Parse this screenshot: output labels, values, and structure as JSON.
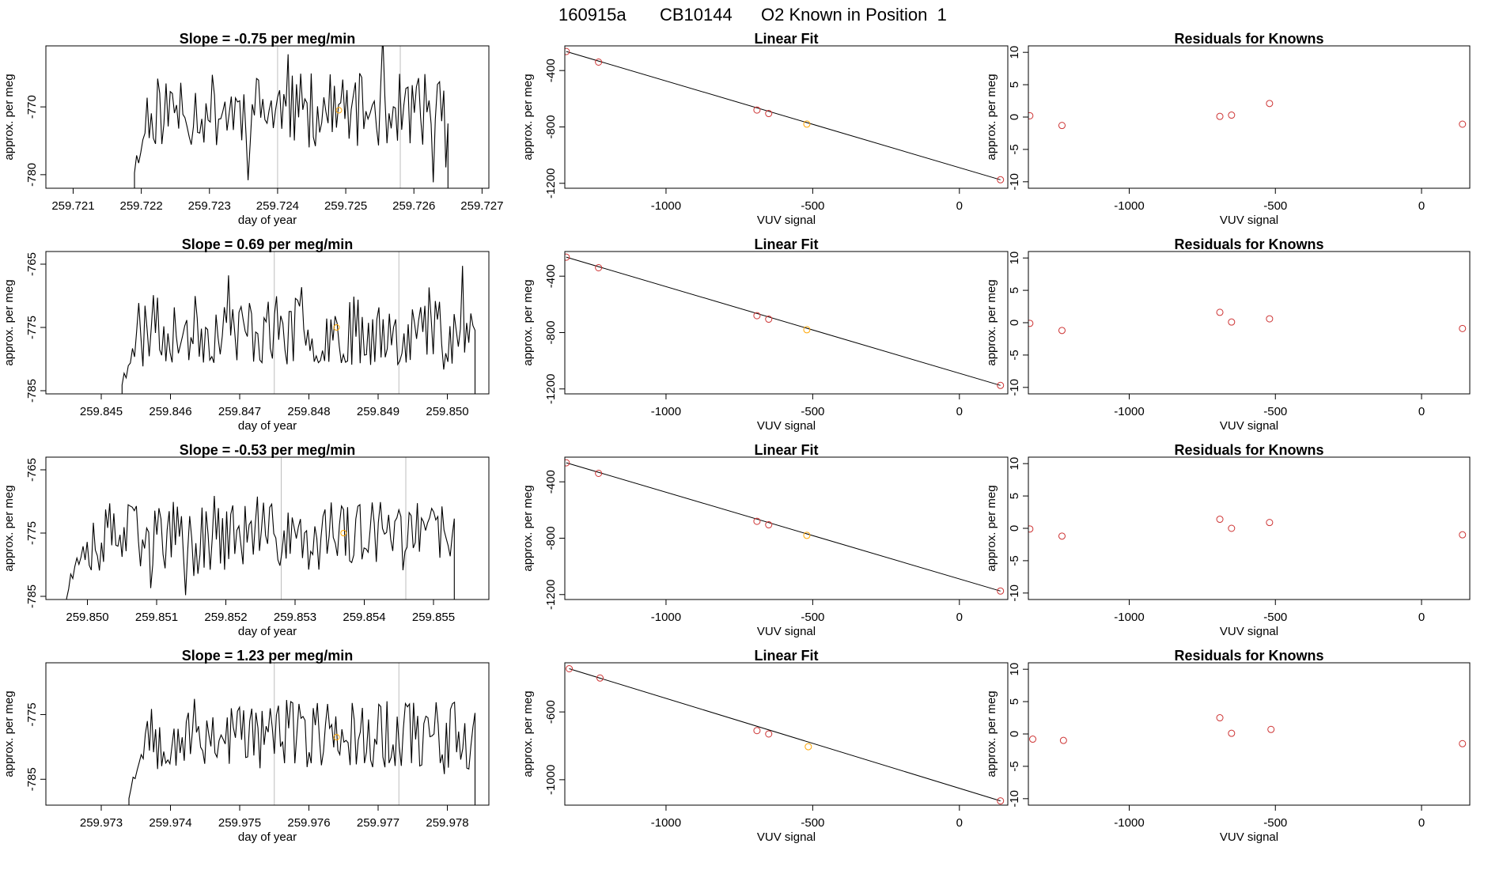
{
  "figure": {
    "run_id": "160915a",
    "tank_id": "CB10144",
    "title_rest": "O2 Known in Position  1"
  },
  "colors": {
    "trace": "#000000",
    "known_points": "#cd3333",
    "highlight_point": "#ffa500",
    "marker_lines": "#bebebe"
  },
  "chart_data": [
    {
      "type": "line",
      "row": 0,
      "panel": "time-series",
      "title": "Slope =  -0.75  per meg/min",
      "xlabel": "day of year",
      "ylabel": "approx. per meg",
      "xlim": [
        259.7206,
        259.7271
      ],
      "ylim": [
        -782,
        -761
      ],
      "xticks": [
        259.721,
        259.722,
        259.723,
        259.724,
        259.725,
        259.726,
        259.727
      ],
      "xtick_labels": [
        "259.721",
        "259.722",
        "259.723",
        "259.724",
        "259.725",
        "259.726",
        "259.727"
      ],
      "yticks": [
        -770,
        -780
      ],
      "ytick_labels": [
        "-770",
        "-780"
      ],
      "x_start": 259.7219,
      "x_end": 259.7265,
      "n_points": 150,
      "y_mean": -770.5,
      "y_amp": 5.5,
      "seed": 11,
      "marker_lines_x": [
        259.724,
        259.7258
      ],
      "highlight": {
        "x": 259.7249,
        "y": -770.5
      }
    },
    {
      "type": "scatter",
      "row": 0,
      "panel": "linear-fit",
      "title": "Linear Fit",
      "xlabel": "VUV signal",
      "ylabel": "approx. per meg",
      "xlim": [
        -1345,
        165
      ],
      "ylim": [
        -1235,
        -225
      ],
      "xticks": [
        -1000,
        -500,
        0
      ],
      "xtick_labels": [
        "-1000",
        "-500",
        "0"
      ],
      "yticks": [
        -400,
        -800,
        -1200
      ],
      "ytick_labels": [
        "-400",
        "-800",
        "-1200"
      ],
      "points": [
        {
          "x": -1340,
          "y": -265
        },
        {
          "x": -1230,
          "y": -340
        },
        {
          "x": -690,
          "y": -680
        },
        {
          "x": -650,
          "y": -705
        },
        {
          "x": -520,
          "y": -780
        },
        {
          "x": 140,
          "y": -1175
        }
      ],
      "fit_line": [
        {
          "x": -1340,
          "y": -265
        },
        {
          "x": 140,
          "y": -1175
        }
      ],
      "highlight_index": 4
    },
    {
      "type": "scatter",
      "row": 0,
      "panel": "residuals",
      "title": "Residuals for Knowns",
      "xlabel": "VUV signal",
      "ylabel": "approx. per meg",
      "xlim": [
        -1345,
        165
      ],
      "ylim": [
        -11,
        11
      ],
      "xticks": [
        -1000,
        -500,
        0
      ],
      "xtick_labels": [
        "-1000",
        "-500",
        "0"
      ],
      "yticks": [
        10,
        5,
        0,
        -5,
        -10
      ],
      "ytick_labels": [
        "10",
        "5",
        "0",
        "-5",
        "-10"
      ],
      "points": [
        {
          "x": -1340,
          "y": 0.2
        },
        {
          "x": -1230,
          "y": -1.3
        },
        {
          "x": -690,
          "y": 0.1
        },
        {
          "x": -650,
          "y": 0.3
        },
        {
          "x": -520,
          "y": 2.1
        },
        {
          "x": 140,
          "y": -1.1
        }
      ]
    },
    {
      "type": "line",
      "row": 1,
      "panel": "time-series",
      "title": "Slope =  0.69  per meg/min",
      "xlabel": "day of year",
      "ylabel": "approx. per meg",
      "xlim": [
        259.8442,
        259.8506
      ],
      "ylim": [
        -785.5,
        -763
      ],
      "xticks": [
        259.845,
        259.846,
        259.847,
        259.848,
        259.849,
        259.85
      ],
      "xtick_labels": [
        "259.845",
        "259.846",
        "259.847",
        "259.848",
        "259.849",
        "259.850"
      ],
      "yticks": [
        -765,
        -775,
        -785
      ],
      "ytick_labels": [
        "-765",
        "-775",
        "-785"
      ],
      "x_start": 259.8453,
      "x_end": 259.8504,
      "n_points": 170,
      "y_mean": -775.5,
      "y_amp": 5.5,
      "seed": 23,
      "marker_lines_x": [
        259.8475,
        259.8493
      ],
      "highlight": {
        "x": 259.8484,
        "y": -775
      }
    },
    {
      "type": "scatter",
      "row": 1,
      "panel": "linear-fit",
      "title": "Linear Fit",
      "xlabel": "VUV signal",
      "ylabel": "approx. per meg",
      "xlim": [
        -1345,
        165
      ],
      "ylim": [
        -1235,
        -225
      ],
      "xticks": [
        -1000,
        -500,
        0
      ],
      "xtick_labels": [
        "-1000",
        "-500",
        "0"
      ],
      "yticks": [
        -400,
        -800,
        -1200
      ],
      "ytick_labels": [
        "-400",
        "-800",
        "-1200"
      ],
      "points": [
        {
          "x": -1340,
          "y": -265
        },
        {
          "x": -1230,
          "y": -340
        },
        {
          "x": -690,
          "y": -680
        },
        {
          "x": -650,
          "y": -705
        },
        {
          "x": -520,
          "y": -780
        },
        {
          "x": 140,
          "y": -1175
        }
      ],
      "fit_line": [
        {
          "x": -1340,
          "y": -265
        },
        {
          "x": 140,
          "y": -1175
        }
      ],
      "highlight_index": 4
    },
    {
      "type": "scatter",
      "row": 1,
      "panel": "residuals",
      "title": "Residuals for Knowns",
      "xlabel": "VUV signal",
      "ylabel": "approx. per meg",
      "xlim": [
        -1345,
        165
      ],
      "ylim": [
        -11,
        11
      ],
      "xticks": [
        -1000,
        -500,
        0
      ],
      "xtick_labels": [
        "-1000",
        "-500",
        "0"
      ],
      "yticks": [
        10,
        5,
        0,
        -5,
        -10
      ],
      "ytick_labels": [
        "10",
        "5",
        "0",
        "-5",
        "-10"
      ],
      "points": [
        {
          "x": -1340,
          "y": -0.1
        },
        {
          "x": -1230,
          "y": -1.2
        },
        {
          "x": -690,
          "y": 1.6
        },
        {
          "x": -650,
          "y": 0.1
        },
        {
          "x": -520,
          "y": 0.6
        },
        {
          "x": 140,
          "y": -0.9
        }
      ]
    },
    {
      "type": "line",
      "row": 2,
      "panel": "time-series",
      "title": "Slope =  -0.53  per meg/min",
      "xlabel": "day of year",
      "ylabel": "approx. per meg",
      "xlim": [
        259.8494,
        259.8558
      ],
      "ylim": [
        -785.5,
        -763
      ],
      "xticks": [
        259.85,
        259.851,
        259.852,
        259.853,
        259.854,
        259.855
      ],
      "xtick_labels": [
        "259.850",
        "259.851",
        "259.852",
        "259.853",
        "259.854",
        "259.855"
      ],
      "yticks": [
        -765,
        -775,
        -785
      ],
      "ytick_labels": [
        "-765",
        "-775",
        "-785"
      ],
      "x_start": 259.8497,
      "x_end": 259.8553,
      "n_points": 190,
      "y_mean": -775.5,
      "y_amp": 5.5,
      "seed": 37,
      "marker_lines_x": [
        259.8528,
        259.8546
      ],
      "highlight": {
        "x": 259.8537,
        "y": -775
      }
    },
    {
      "type": "scatter",
      "row": 2,
      "panel": "linear-fit",
      "title": "Linear Fit",
      "xlabel": "VUV signal",
      "ylabel": "approx. per meg",
      "xlim": [
        -1345,
        165
      ],
      "ylim": [
        -1235,
        -225
      ],
      "xticks": [
        -1000,
        -500,
        0
      ],
      "xtick_labels": [
        "-1000",
        "-500",
        "0"
      ],
      "yticks": [
        -400,
        -800,
        -1200
      ],
      "ytick_labels": [
        "-400",
        "-800",
        "-1200"
      ],
      "points": [
        {
          "x": -1340,
          "y": -265
        },
        {
          "x": -1230,
          "y": -340
        },
        {
          "x": -690,
          "y": -680
        },
        {
          "x": -650,
          "y": -705
        },
        {
          "x": -520,
          "y": -780
        },
        {
          "x": 140,
          "y": -1175
        }
      ],
      "fit_line": [
        {
          "x": -1340,
          "y": -265
        },
        {
          "x": 140,
          "y": -1175
        }
      ],
      "highlight_index": 4
    },
    {
      "type": "scatter",
      "row": 2,
      "panel": "residuals",
      "title": "Residuals for Knowns",
      "xlabel": "VUV signal",
      "ylabel": "approx. per meg",
      "xlim": [
        -1345,
        165
      ],
      "ylim": [
        -11,
        11
      ],
      "xticks": [
        -1000,
        -500,
        0
      ],
      "xtick_labels": [
        "-1000",
        "-500",
        "0"
      ],
      "yticks": [
        10,
        5,
        0,
        -5,
        -10
      ],
      "ytick_labels": [
        "10",
        "5",
        "0",
        "-5",
        "-10"
      ],
      "points": [
        {
          "x": -1340,
          "y": -0.1
        },
        {
          "x": -1230,
          "y": -1.2
        },
        {
          "x": -690,
          "y": 1.4
        },
        {
          "x": -650,
          "y": 0.0
        },
        {
          "x": -520,
          "y": 0.9
        },
        {
          "x": 140,
          "y": -1.0
        }
      ]
    },
    {
      "type": "line",
      "row": 3,
      "panel": "time-series",
      "title": "Slope =  1.23  per meg/min",
      "xlabel": "day of year",
      "ylabel": "approx. per meg",
      "xlim": [
        259.9722,
        259.9786
      ],
      "ylim": [
        -789,
        -767
      ],
      "xticks": [
        259.973,
        259.974,
        259.975,
        259.976,
        259.977,
        259.978
      ],
      "xtick_labels": [
        "259.973",
        "259.974",
        "259.975",
        "259.976",
        "259.977",
        "259.978"
      ],
      "yticks": [
        -775,
        -785
      ],
      "ytick_labels": [
        "-775",
        "-785"
      ],
      "x_start": 259.9734,
      "x_end": 259.9784,
      "n_points": 170,
      "y_mean": -778,
      "y_amp": 5.5,
      "seed": 53,
      "marker_lines_x": [
        259.9755,
        259.9773
      ],
      "highlight": {
        "x": 259.9764,
        "y": -778.5
      }
    },
    {
      "type": "scatter",
      "row": 3,
      "panel": "linear-fit",
      "title": "Linear Fit",
      "xlabel": "VUV signal",
      "ylabel": "approx. per meg",
      "xlim": [
        -1345,
        165
      ],
      "ylim": [
        -1150,
        -310
      ],
      "xticks": [
        -1000,
        -500,
        0
      ],
      "xtick_labels": [
        "-1000",
        "-500",
        "0"
      ],
      "yticks": [
        -600,
        -1000
      ],
      "ytick_labels": [
        "-600",
        "-1000"
      ],
      "points": [
        {
          "x": -1330,
          "y": -345
        },
        {
          "x": -1225,
          "y": -400
        },
        {
          "x": -690,
          "y": -710
        },
        {
          "x": -650,
          "y": -730
        },
        {
          "x": -515,
          "y": -805
        },
        {
          "x": 140,
          "y": -1125
        }
      ],
      "fit_line": [
        {
          "x": -1330,
          "y": -345
        },
        {
          "x": 140,
          "y": -1125
        }
      ],
      "highlight_index": 4
    },
    {
      "type": "scatter",
      "row": 3,
      "panel": "residuals",
      "title": "Residuals for Knowns",
      "xlabel": "VUV signal",
      "ylabel": "approx. per meg",
      "xlim": [
        -1345,
        165
      ],
      "ylim": [
        -11,
        11
      ],
      "xticks": [
        -1000,
        -500,
        0
      ],
      "xtick_labels": [
        "-1000",
        "-500",
        "0"
      ],
      "yticks": [
        10,
        5,
        0,
        -5,
        -10
      ],
      "ytick_labels": [
        "10",
        "5",
        "0",
        "-5",
        "-10"
      ],
      "points": [
        {
          "x": -1330,
          "y": -0.8
        },
        {
          "x": -1225,
          "y": -1.0
        },
        {
          "x": -690,
          "y": 2.5
        },
        {
          "x": -650,
          "y": 0.1
        },
        {
          "x": -515,
          "y": 0.7
        },
        {
          "x": 140,
          "y": -1.5
        }
      ]
    }
  ]
}
